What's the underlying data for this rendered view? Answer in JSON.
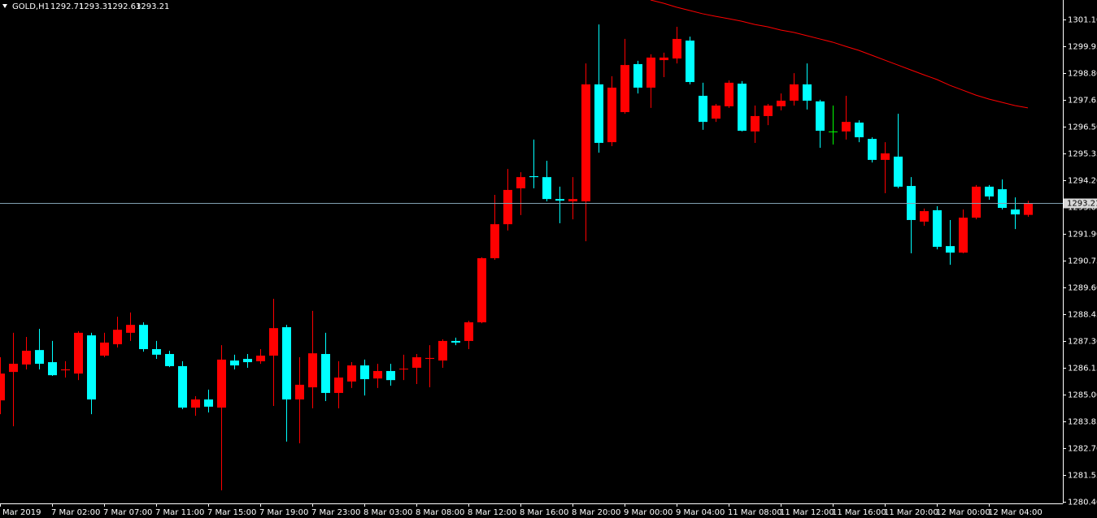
{
  "chart_data": {
    "type": "candlestick",
    "title": "GOLD,H1",
    "up_color": "#ff0000",
    "down_color": "#00ffff",
    "doji_color": "#00ff00",
    "categories": [
      "Mar 2019",
      null,
      null,
      null,
      "7 Mar 02:00",
      null,
      null,
      null,
      "7 Mar 07:00",
      null,
      null,
      null,
      "7 Mar 11:00",
      null,
      null,
      null,
      "7 Mar 15:00",
      null,
      null,
      null,
      "7 Mar 19:00",
      null,
      null,
      null,
      "7 Mar 23:00",
      null,
      null,
      null,
      "8 Mar 03:00",
      null,
      null,
      null,
      "8 Mar 08:00",
      null,
      null,
      null,
      "8 Mar 12:00",
      null,
      null,
      null,
      "8 Mar 16:00",
      null,
      null,
      null,
      "8 Mar 20:00",
      null,
      null,
      null,
      "9 Mar 00:00",
      null,
      null,
      null,
      "9 Mar 04:00",
      null,
      null,
      null,
      "11 Mar 08:00",
      null,
      null,
      null,
      "11 Mar 12:00",
      null,
      null,
      null,
      "11 Mar 16:00",
      null,
      null,
      null,
      "11 Mar 20:00",
      null,
      null,
      null,
      "12 Mar 00:00",
      null,
      null,
      null,
      "12 Mar 04:00",
      null,
      null,
      null
    ],
    "open": [
      1284.75,
      1285.97,
      1286.29,
      1286.91,
      1286.39,
      1286.04,
      1285.9,
      1287.54,
      1286.67,
      1287.16,
      1287.65,
      1287.99,
      1286.95,
      1286.74,
      1286.22,
      1284.44,
      1284.79,
      1284.44,
      1286.46,
      1286.53,
      1286.43,
      1286.67,
      1287.89,
      1284.79,
      1285.31,
      1286.74,
      1285.07,
      1285.56,
      1286.25,
      1285.69,
      1286.01,
      1286.08,
      1286.15,
      1286.53,
      1286.46,
      1287.3,
      1287.3,
      1288.1,
      1290.85,
      1292.31,
      1293.85,
      1294.37,
      1294.33,
      1293.39,
      1293.29,
      1293.29,
      1298.31,
      1295.83,
      1297.12,
      1299.18,
      1298.17,
      1299.35,
      1299.42,
      1300.19,
      1297.82,
      1296.84,
      1297.37,
      1298.34,
      1296.29,
      1296.95,
      1297.37,
      1297.61,
      1298.31,
      1297.58,
      1296.29,
      1296.29,
      1296.67,
      1295.97,
      1295.07,
      1295.21,
      1293.95,
      1292.42,
      1292.91,
      1291.37,
      1291.09,
      1292.59,
      1293.92,
      1293.81,
      1292.94,
      1292.71
    ],
    "high": [
      1286.6,
      1287.65,
      1287.47,
      1287.82,
      1287.3,
      1286.43,
      1287.72,
      1287.65,
      1287.65,
      1288.34,
      1288.52,
      1288.1,
      1287.3,
      1286.88,
      1286.43,
      1284.93,
      1285.21,
      1287.12,
      1286.71,
      1286.74,
      1286.95,
      1289.11,
      1287.99,
      1286.6,
      1288.59,
      1287.65,
      1286.43,
      1286.39,
      1286.5,
      1286.32,
      1286.32,
      1286.71,
      1286.74,
      1287.12,
      1287.37,
      1287.44,
      1288.17,
      1290.89,
      1293.57,
      1294.68,
      1294.54,
      1295.94,
      1295.03,
      1293.92,
      1294.33,
      1299.21,
      1300.88,
      1298.66,
      1300.26,
      1299.32,
      1299.6,
      1299.67,
      1300.78,
      1300.36,
      1298.38,
      1297.47,
      1298.48,
      1298.45,
      1297.4,
      1297.47,
      1297.92,
      1298.79,
      1299.21,
      1297.65,
      1297.4,
      1297.82,
      1296.77,
      1296.04,
      1295.83,
      1297.05,
      1294.33,
      1292.98,
      1293.08,
      1292.49,
      1292.94,
      1293.99,
      1293.99,
      1294.23,
      1293.46,
      1293.31
    ],
    "low": [
      1284.16,
      1283.64,
      1286.08,
      1286.08,
      1285.8,
      1285.73,
      1285.62,
      1284.16,
      1286.6,
      1287.02,
      1287.3,
      1286.84,
      1286.53,
      1286.18,
      1284.37,
      1284.09,
      1284.23,
      1280.89,
      1286.08,
      1286.15,
      1286.32,
      1284.51,
      1282.98,
      1282.91,
      1284.41,
      1284.72,
      1284.41,
      1285.28,
      1284.96,
      1285.28,
      1285.38,
      1285.62,
      1285.45,
      1285.31,
      1286.15,
      1287.12,
      1286.95,
      1288.06,
      1290.78,
      1292.04,
      1292.7,
      1293.85,
      1293.29,
      1292.35,
      1292.52,
      1291.58,
      1295.38,
      1295.66,
      1297.05,
      1297.92,
      1297.3,
      1298.62,
      1299.21,
      1298.31,
      1296.36,
      1296.7,
      1297.3,
      1296.29,
      1295.8,
      1296.56,
      1297.19,
      1297.4,
      1297.23,
      1295.59,
      1295.73,
      1295.94,
      1295.83,
      1294.96,
      1293.64,
      1293.85,
      1291.06,
      1292.24,
      1291.23,
      1290.57,
      1291.06,
      1292.52,
      1293.36,
      1292.94,
      1292.1,
      1292.63
    ],
    "close": [
      1285.9,
      1286.32,
      1286.88,
      1286.32,
      1285.83,
      1286.08,
      1287.65,
      1284.79,
      1287.23,
      1287.78,
      1287.99,
      1286.95,
      1286.71,
      1286.22,
      1284.44,
      1284.79,
      1284.48,
      1286.5,
      1286.25,
      1286.39,
      1286.67,
      1287.85,
      1284.79,
      1285.42,
      1286.77,
      1285.07,
      1285.73,
      1286.25,
      1285.66,
      1286.01,
      1285.62,
      1286.11,
      1286.6,
      1286.57,
      1287.3,
      1287.23,
      1288.1,
      1290.85,
      1292.31,
      1293.78,
      1294.33,
      1294.33,
      1293.39,
      1293.32,
      1293.39,
      1298.31,
      1295.8,
      1298.17,
      1299.14,
      1298.17,
      1299.46,
      1299.46,
      1300.26,
      1298.41,
      1296.7,
      1297.4,
      1298.38,
      1296.32,
      1296.95,
      1297.4,
      1297.61,
      1298.31,
      1297.61,
      1296.32,
      1296.29,
      1296.7,
      1296.04,
      1295.07,
      1295.35,
      1293.92,
      1292.49,
      1292.87,
      1291.34,
      1291.09,
      1292.59,
      1293.92,
      1293.5,
      1293.01,
      1292.73,
      1293.21
    ],
    "ma": {
      "color": "#ff0000",
      "values": [
        null,
        null,
        null,
        null,
        null,
        null,
        null,
        null,
        null,
        null,
        null,
        null,
        null,
        null,
        null,
        null,
        null,
        null,
        null,
        null,
        null,
        null,
        null,
        null,
        null,
        null,
        null,
        null,
        null,
        null,
        null,
        null,
        null,
        null,
        null,
        null,
        null,
        null,
        null,
        null,
        null,
        null,
        null,
        null,
        null,
        null,
        null,
        null,
        null,
        null,
        1301.93,
        1301.79,
        1301.62,
        1301.48,
        1301.34,
        1301.23,
        1301.13,
        1301.02,
        1300.88,
        1300.78,
        1300.64,
        1300.54,
        1300.4,
        1300.26,
        1300.12,
        1299.94,
        1299.77,
        1299.56,
        1299.35,
        1299.14,
        1298.93,
        1298.72,
        1298.52,
        1298.27,
        1298.06,
        1297.85,
        1297.68,
        1297.54,
        1297.4,
        1297.3
      ]
    },
    "price_line_color": "#7f9fb0",
    "ylim": [
      1280.33,
      1301.93
    ],
    "yticks": [
      {
        "value": 1301.1,
        "label": "1301.10"
      },
      1299.95,
      {
        "value": 1298.8,
        "label": "1298.80"
      },
      1297.65,
      {
        "value": 1296.5,
        "label": "1296.50"
      },
      1295.35,
      {
        "value": 1294.2,
        "label": "1294.20"
      },
      1293.05,
      {
        "value": 1291.9,
        "label": "1291.90"
      },
      1290.75,
      {
        "value": 1289.6,
        "label": "1289.60"
      },
      1288.45,
      {
        "value": 1287.3,
        "label": "1287.30"
      },
      1286.15,
      {
        "value": 1285.0,
        "label": "1285.00"
      },
      1283.85,
      {
        "value": 1282.7,
        "label": "1282.70"
      },
      1281.55,
      {
        "value": 1280.4,
        "label": "1280.40"
      }
    ]
  }
}
